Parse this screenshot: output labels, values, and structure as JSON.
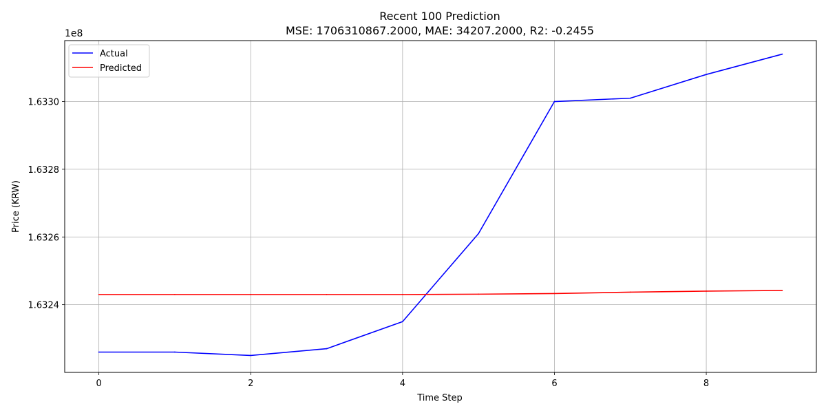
{
  "chart_data": {
    "type": "line",
    "title": "Recent 100 Prediction",
    "subtitle": "MSE: 1706310867.2000, MAE: 34207.2000, R2: -0.2455",
    "xlabel": "Time Step",
    "ylabel": "Price (KRW)",
    "y_offset_label": "1e8",
    "x": [
      0,
      1,
      2,
      3,
      4,
      5,
      6,
      7,
      8,
      9
    ],
    "xlim": [
      -0.45,
      9.45
    ],
    "ylim": [
      163220000,
      163318000
    ],
    "x_ticks": [
      0,
      2,
      4,
      6,
      8
    ],
    "x_tick_labels": [
      "0",
      "2",
      "4",
      "6",
      "8"
    ],
    "y_ticks": [
      163240000,
      163260000,
      163280000,
      163300000
    ],
    "y_tick_labels": [
      "1.6324",
      "1.6326",
      "1.6328",
      "1.6330"
    ],
    "grid": true,
    "legend_position": "top-left",
    "series": [
      {
        "name": "Actual",
        "color": "#0000ff",
        "values": [
          163226000,
          163226000,
          163225000,
          163227000,
          163235000,
          163261000,
          163300000,
          163301000,
          163308000,
          163314000
        ]
      },
      {
        "name": "Predicted",
        "color": "#ff0000",
        "values": [
          163243000,
          163243000,
          163243000,
          163243000,
          163243000,
          163243100,
          163243300,
          163243700,
          163244000,
          163244200
        ]
      }
    ]
  }
}
